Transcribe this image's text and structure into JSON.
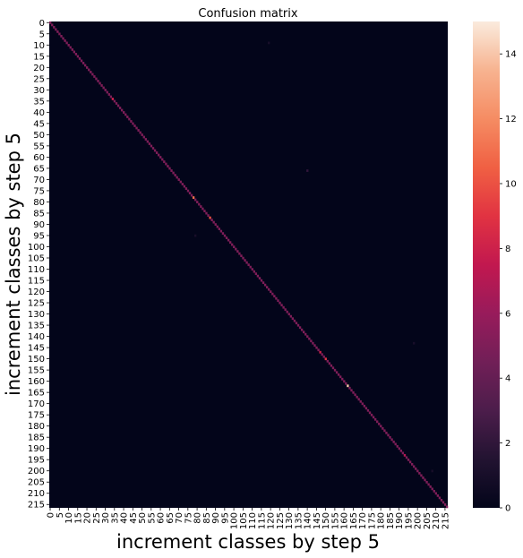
{
  "chart_data": {
    "type": "heatmap",
    "title": "Confusion matrix",
    "xlabel": "increment classes by step 5",
    "ylabel": "increment classes by step 5",
    "n_classes": 217,
    "tick_step": 5,
    "x_ticks": [
      "0",
      "5",
      "10",
      "15",
      "20",
      "25",
      "30",
      "35",
      "40",
      "45",
      "50",
      "55",
      "60",
      "65",
      "70",
      "75",
      "80",
      "85",
      "90",
      "95",
      "100",
      "105",
      "110",
      "115",
      "120",
      "125",
      "130",
      "135",
      "140",
      "145",
      "150",
      "155",
      "160",
      "165",
      "170",
      "175",
      "180",
      "185",
      "190",
      "195",
      "200",
      "205",
      "210",
      "215"
    ],
    "y_ticks": [
      "0",
      "5",
      "10",
      "15",
      "20",
      "25",
      "30",
      "35",
      "40",
      "45",
      "50",
      "55",
      "60",
      "65",
      "70",
      "75",
      "80",
      "85",
      "90",
      "95",
      "100",
      "105",
      "110",
      "115",
      "120",
      "125",
      "130",
      "135",
      "140",
      "145",
      "150",
      "155",
      "160",
      "165",
      "170",
      "175",
      "180",
      "185",
      "190",
      "195",
      "200",
      "205",
      "210",
      "215"
    ],
    "colorbar": {
      "min": 0,
      "max": 15,
      "ticks": [
        "0",
        "2",
        "4",
        "6",
        "8",
        "10",
        "12",
        "14"
      ],
      "colormap": "rocket"
    },
    "diagonal_default": 5,
    "diagonal_highlights": [
      {
        "cls": 34,
        "value": 8
      },
      {
        "cls": 78,
        "value": 11
      },
      {
        "cls": 87,
        "value": 10
      },
      {
        "cls": 147,
        "value": 8
      },
      {
        "cls": 150,
        "value": 9
      },
      {
        "cls": 162,
        "value": 14
      },
      {
        "cls": 193,
        "value": 7
      }
    ],
    "off_diagonal": [
      {
        "row": 66,
        "col": 140,
        "value": 2
      },
      {
        "row": 200,
        "col": 208,
        "value": 1
      },
      {
        "row": 143,
        "col": 198,
        "value": 1
      },
      {
        "row": 9,
        "col": 119,
        "value": 1
      },
      {
        "row": 95,
        "col": 79,
        "value": 1
      }
    ]
  }
}
